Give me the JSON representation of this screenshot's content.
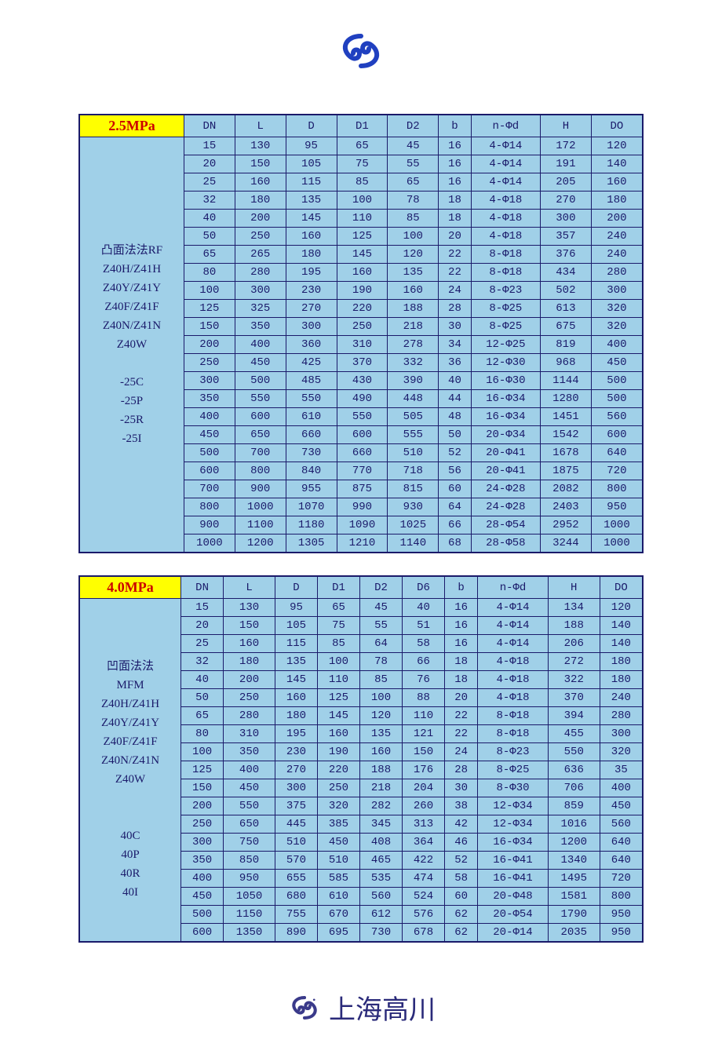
{
  "logo": {
    "stroke_color": "#2040c0",
    "brand_text": "上海高川"
  },
  "table1": {
    "pressure_label": "2.5MPa",
    "header_bg": "#ffff00",
    "header_color": "#cc0000",
    "cell_bg": "#a0d0e8",
    "border_color": "#1a1a6a",
    "columns": [
      "DN",
      "L",
      "D",
      "D1",
      "D2",
      "b",
      "n-Φd",
      "H",
      "DO"
    ],
    "rowlabel_lines": [
      "凸面法法RF",
      "Z40H/Z41H",
      "Z40Y/Z41Y",
      "Z40F/Z41F",
      "Z40N/Z41N",
      "Z40W",
      "",
      "-25C",
      "-25P",
      "-25R",
      "-25I"
    ],
    "rows": [
      [
        "15",
        "130",
        "95",
        "65",
        "45",
        "16",
        "4-Φ14",
        "172",
        "120"
      ],
      [
        "20",
        "150",
        "105",
        "75",
        "55",
        "16",
        "4-Φ14",
        "191",
        "140"
      ],
      [
        "25",
        "160",
        "115",
        "85",
        "65",
        "16",
        "4-Φ14",
        "205",
        "160"
      ],
      [
        "32",
        "180",
        "135",
        "100",
        "78",
        "18",
        "4-Φ18",
        "270",
        "180"
      ],
      [
        "40",
        "200",
        "145",
        "110",
        "85",
        "18",
        "4-Φ18",
        "300",
        "200"
      ],
      [
        "50",
        "250",
        "160",
        "125",
        "100",
        "20",
        "4-Φ18",
        "357",
        "240"
      ],
      [
        "65",
        "265",
        "180",
        "145",
        "120",
        "22",
        "8-Φ18",
        "376",
        "240"
      ],
      [
        "80",
        "280",
        "195",
        "160",
        "135",
        "22",
        "8-Φ18",
        "434",
        "280"
      ],
      [
        "100",
        "300",
        "230",
        "190",
        "160",
        "24",
        "8-Φ23",
        "502",
        "300"
      ],
      [
        "125",
        "325",
        "270",
        "220",
        "188",
        "28",
        "8-Φ25",
        "613",
        "320"
      ],
      [
        "150",
        "350",
        "300",
        "250",
        "218",
        "30",
        "8-Φ25",
        "675",
        "320"
      ],
      [
        "200",
        "400",
        "360",
        "310",
        "278",
        "34",
        "12-Φ25",
        "819",
        "400"
      ],
      [
        "250",
        "450",
        "425",
        "370",
        "332",
        "36",
        "12-Φ30",
        "968",
        "450"
      ],
      [
        "300",
        "500",
        "485",
        "430",
        "390",
        "40",
        "16-Φ30",
        "1144",
        "500"
      ],
      [
        "350",
        "550",
        "550",
        "490",
        "448",
        "44",
        "16-Φ34",
        "1280",
        "500"
      ],
      [
        "400",
        "600",
        "610",
        "550",
        "505",
        "48",
        "16-Φ34",
        "1451",
        "560"
      ],
      [
        "450",
        "650",
        "660",
        "600",
        "555",
        "50",
        "20-Φ34",
        "1542",
        "600"
      ],
      [
        "500",
        "700",
        "730",
        "660",
        "510",
        "52",
        "20-Φ41",
        "1678",
        "640"
      ],
      [
        "600",
        "800",
        "840",
        "770",
        "718",
        "56",
        "20-Φ41",
        "1875",
        "720"
      ],
      [
        "700",
        "900",
        "955",
        "875",
        "815",
        "60",
        "24-Φ28",
        "2082",
        "800"
      ],
      [
        "800",
        "1000",
        "1070",
        "990",
        "930",
        "64",
        "24-Φ28",
        "2403",
        "950"
      ],
      [
        "900",
        "1100",
        "1180",
        "1090",
        "1025",
        "66",
        "28-Φ54",
        "2952",
        "1000"
      ],
      [
        "1000",
        "1200",
        "1305",
        "1210",
        "1140",
        "68",
        "28-Φ58",
        "3244",
        "1000"
      ]
    ]
  },
  "table2": {
    "pressure_label": "4.0MPa",
    "columns": [
      "DN",
      "L",
      "D",
      "D1",
      "D2",
      "D6",
      "b",
      "n-Φd",
      "H",
      "DO"
    ],
    "rowlabel_lines": [
      "",
      "凹面法法",
      "MFM",
      "Z40H/Z41H",
      "Z40Y/Z41Y",
      "Z40F/Z41F",
      "Z40N/Z41N",
      "Z40W",
      "",
      "",
      "40C",
      "40P",
      "40R",
      "40I"
    ],
    "rows": [
      [
        "15",
        "130",
        "95",
        "65",
        "45",
        "40",
        "16",
        "4-Φ14",
        "134",
        "120"
      ],
      [
        "20",
        "150",
        "105",
        "75",
        "55",
        "51",
        "16",
        "4-Φ14",
        "188",
        "140"
      ],
      [
        "25",
        "160",
        "115",
        "85",
        "64",
        "58",
        "16",
        "4-Φ14",
        "206",
        "140"
      ],
      [
        "32",
        "180",
        "135",
        "100",
        "78",
        "66",
        "18",
        "4-Φ18",
        "272",
        "180"
      ],
      [
        "40",
        "200",
        "145",
        "110",
        "85",
        "76",
        "18",
        "4-Φ18",
        "322",
        "180"
      ],
      [
        "50",
        "250",
        "160",
        "125",
        "100",
        "88",
        "20",
        "4-Φ18",
        "370",
        "240"
      ],
      [
        "65",
        "280",
        "180",
        "145",
        "120",
        "110",
        "22",
        "8-Φ18",
        "394",
        "280"
      ],
      [
        "80",
        "310",
        "195",
        "160",
        "135",
        "121",
        "22",
        "8-Φ18",
        "455",
        "300"
      ],
      [
        "100",
        "350",
        "230",
        "190",
        "160",
        "150",
        "24",
        "8-Φ23",
        "550",
        "320"
      ],
      [
        "125",
        "400",
        "270",
        "220",
        "188",
        "176",
        "28",
        "8-Φ25",
        "636",
        "35"
      ],
      [
        "150",
        "450",
        "300",
        "250",
        "218",
        "204",
        "30",
        "8-Φ30",
        "706",
        "400"
      ],
      [
        "200",
        "550",
        "375",
        "320",
        "282",
        "260",
        "38",
        "12-Φ34",
        "859",
        "450"
      ],
      [
        "250",
        "650",
        "445",
        "385",
        "345",
        "313",
        "42",
        "12-Φ34",
        "1016",
        "560"
      ],
      [
        "300",
        "750",
        "510",
        "450",
        "408",
        "364",
        "46",
        "16-Φ34",
        "1200",
        "640"
      ],
      [
        "350",
        "850",
        "570",
        "510",
        "465",
        "422",
        "52",
        "16-Φ41",
        "1340",
        "640"
      ],
      [
        "400",
        "950",
        "655",
        "585",
        "535",
        "474",
        "58",
        "16-Φ41",
        "1495",
        "720"
      ],
      [
        "450",
        "1050",
        "680",
        "610",
        "560",
        "524",
        "60",
        "20-Φ48",
        "1581",
        "800"
      ],
      [
        "500",
        "1150",
        "755",
        "670",
        "612",
        "576",
        "62",
        "20-Φ54",
        "1790",
        "950"
      ],
      [
        "600",
        "1350",
        "890",
        "695",
        "730",
        "678",
        "62",
        "20-Φ14",
        "2035",
        "950"
      ]
    ]
  }
}
